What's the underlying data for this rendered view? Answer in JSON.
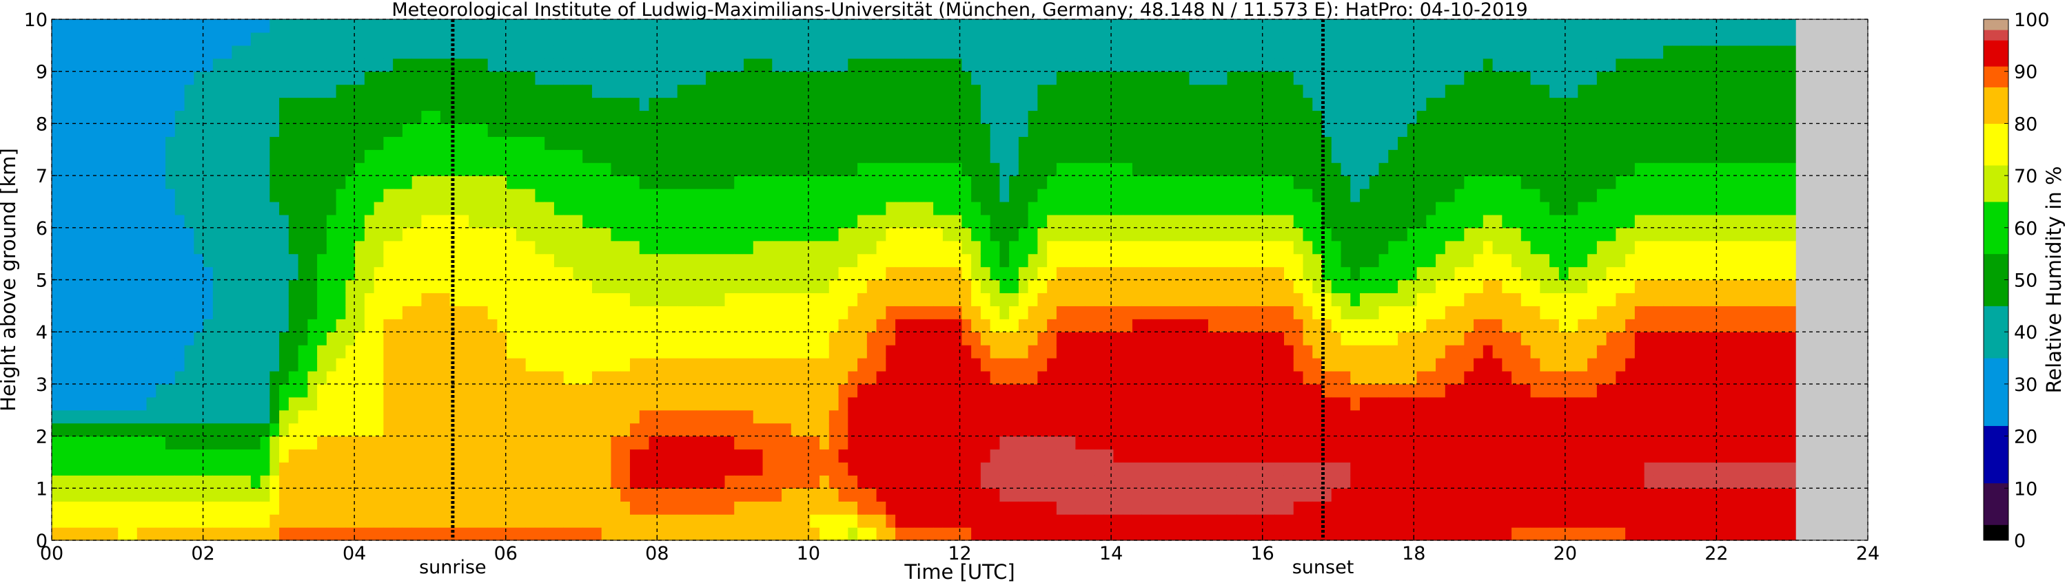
{
  "chart_data": {
    "type": "heatmap",
    "title": "Meteorological Institute of Ludwig-Maximilians-Universität (München, Germany; 48.148 N / 11.573 E):    HatPro: 04-10-2019",
    "xlabel": "Time [UTC]",
    "ylabel": "Height above ground [km]",
    "colorbar_label": "Relative Humidity in %",
    "xlim": [
      0,
      24
    ],
    "ylim": [
      0,
      10
    ],
    "x_ticks": [
      "00",
      "02",
      "04",
      "06",
      "08",
      "10",
      "12",
      "14",
      "16",
      "18",
      "20",
      "22",
      "24"
    ],
    "y_ticks": [
      "0",
      "1",
      "2",
      "3",
      "4",
      "5",
      "6",
      "7",
      "8",
      "9",
      "10"
    ],
    "colorbar_ticks": [
      "0",
      "10",
      "20",
      "30",
      "40",
      "50",
      "60",
      "70",
      "80",
      "90",
      "100"
    ],
    "grid": true,
    "data_end_hour": 23.05,
    "no_data_color": "#c8c8c8",
    "events": [
      {
        "label": "sunrise",
        "hour": 5.3
      },
      {
        "label": "sunset",
        "hour": 16.8
      }
    ],
    "colorscale": [
      {
        "from": 0,
        "to": 3,
        "color": "#000000"
      },
      {
        "from": 3,
        "to": 11,
        "color": "#3a0a4a"
      },
      {
        "from": 11,
        "to": 22,
        "color": "#0000aa"
      },
      {
        "from": 22,
        "to": 35,
        "color": "#0096e0"
      },
      {
        "from": 35,
        "to": 45,
        "color": "#00a8a0"
      },
      {
        "from": 45,
        "to": 55,
        "color": "#00a000"
      },
      {
        "from": 55,
        "to": 65,
        "color": "#00d800"
      },
      {
        "from": 65,
        "to": 72,
        "color": "#c8f000"
      },
      {
        "from": 72,
        "to": 80,
        "color": "#ffff00"
      },
      {
        "from": 80,
        "to": 87,
        "color": "#ffc000"
      },
      {
        "from": 87,
        "to": 91,
        "color": "#ff6000"
      },
      {
        "from": 91,
        "to": 96,
        "color": "#e00000"
      },
      {
        "from": 96,
        "to": 98,
        "color": "#d24646"
      },
      {
        "from": 98,
        "to": 100,
        "color": "#c8a080"
      }
    ],
    "profile_heights_km": [
      0,
      0.1,
      0.3,
      0.6,
      1.0,
      1.5,
      2.0,
      2.5,
      3.0,
      3.5,
      4.0,
      4.5,
      5.0,
      5.5,
      6.0,
      6.5,
      7.0,
      7.5,
      8.0,
      8.5,
      9.0,
      9.5,
      10.0
    ],
    "profiles": [
      {
        "hour": 0.0,
        "rh": [
          84,
          82,
          80,
          76,
          70,
          62,
          55,
          34,
          32,
          30,
          30,
          29,
          28,
          29,
          30,
          31,
          30,
          28,
          27,
          26,
          25,
          24,
          22
        ]
      },
      {
        "hour": 1.0,
        "rh": [
          82,
          80,
          78,
          74,
          68,
          60,
          54,
          35,
          34,
          32,
          31,
          30,
          30,
          31,
          31,
          32,
          32,
          31,
          30,
          29,
          28,
          26,
          24
        ]
      },
      {
        "hour": 2.0,
        "rh": [
          84,
          82,
          79,
          75,
          68,
          59,
          53,
          36,
          36,
          36,
          35,
          34,
          34,
          35,
          36,
          37,
          38,
          39,
          38,
          37,
          35,
          33,
          30
        ]
      },
      {
        "hour": 2.8,
        "rh": [
          86,
          84,
          80,
          75,
          67,
          58,
          52,
          36,
          37,
          37,
          38,
          38,
          39,
          40,
          41,
          42,
          43,
          42,
          41,
          40,
          38,
          36,
          34
        ]
      },
      {
        "hour": 3.1,
        "rh": [
          90,
          88,
          84,
          82,
          82,
          84,
          76,
          66,
          56,
          50,
          46,
          44,
          42,
          42,
          44,
          48,
          50,
          50,
          48,
          45,
          42,
          40,
          38
        ]
      },
      {
        "hour": 3.6,
        "rh": [
          92,
          88,
          85,
          83,
          82,
          82,
          80,
          76,
          72,
          68,
          62,
          58,
          57,
          56,
          55,
          52,
          50,
          48,
          47,
          45,
          43,
          41,
          40
        ]
      },
      {
        "hour": 4.4,
        "rh": [
          92,
          89,
          85,
          84,
          83,
          82,
          80,
          80,
          80,
          80,
          80,
          78,
          75,
          73,
          70,
          66,
          62,
          56,
          52,
          48,
          45,
          42,
          40
        ]
      },
      {
        "hour": 5.0,
        "rh": [
          93,
          90,
          86,
          84,
          84,
          82,
          82,
          81,
          84,
          85,
          88,
          82,
          78,
          76,
          74,
          70,
          66,
          62,
          57,
          52,
          48,
          44,
          42
        ]
      },
      {
        "hour": 6.0,
        "rh": [
          93,
          90,
          86,
          85,
          84,
          84,
          82,
          82,
          82,
          80,
          80,
          78,
          76,
          74,
          72,
          68,
          64,
          58,
          53,
          48,
          45,
          42,
          40
        ]
      },
      {
        "hour": 7.0,
        "rh": [
          91,
          88,
          84,
          82,
          82,
          83,
          82,
          80,
          80,
          78,
          76,
          74,
          72,
          70,
          66,
          62,
          58,
          54,
          50,
          46,
          43,
          41,
          40
        ]
      },
      {
        "hour": 7.8,
        "rh": [
          89,
          86,
          84,
          88,
          92,
          93,
          90,
          86,
          82,
          80,
          76,
          72,
          70,
          66,
          62,
          58,
          54,
          50,
          47,
          44,
          42,
          40,
          38
        ]
      },
      {
        "hour": 8.5,
        "rh": [
          88,
          86,
          84,
          88,
          91,
          93,
          92,
          86,
          82,
          80,
          76,
          72,
          68,
          64,
          60,
          56,
          52,
          50,
          48,
          46,
          44,
          42,
          40
        ]
      },
      {
        "hour": 9.3,
        "rh": [
          87,
          85,
          84,
          86,
          90,
          92,
          90,
          86,
          82,
          80,
          78,
          74,
          70,
          66,
          62,
          58,
          55,
          52,
          50,
          48,
          46,
          43,
          40
        ]
      },
      {
        "hour": 10.2,
        "rh": [
          82,
          80,
          78,
          82,
          86,
          88,
          86,
          84,
          82,
          80,
          78,
          74,
          70,
          66,
          62,
          58,
          54,
          52,
          50,
          48,
          45,
          42,
          40
        ]
      },
      {
        "hour": 10.6,
        "rh": [
          62,
          70,
          78,
          86,
          90,
          93,
          93,
          92,
          90,
          86,
          84,
          80,
          76,
          70,
          66,
          60,
          56,
          52,
          50,
          48,
          46,
          43,
          40
        ]
      },
      {
        "hour": 11.2,
        "rh": [
          86,
          88,
          91,
          93,
          94,
          94,
          94,
          94,
          94,
          93,
          92,
          88,
          84,
          78,
          72,
          64,
          58,
          54,
          52,
          50,
          47,
          44,
          41
        ]
      },
      {
        "hour": 12.0,
        "rh": [
          88,
          90,
          93,
          94,
          95,
          95,
          95,
          95,
          94,
          93,
          92,
          88,
          82,
          76,
          70,
          62,
          56,
          53,
          51,
          49,
          46,
          43,
          40
        ]
      },
      {
        "hour": 12.6,
        "rh": [
          89,
          92,
          94,
          95,
          97,
          97,
          96,
          94,
          90,
          86,
          78,
          68,
          58,
          52,
          48,
          45,
          43,
          42,
          41,
          40,
          39,
          38,
          37
        ]
      },
      {
        "hour": 13.3,
        "rh": [
          90,
          93,
          95,
          96,
          97,
          97,
          96,
          94,
          93,
          92,
          91,
          88,
          84,
          78,
          70,
          62,
          56,
          52,
          50,
          48,
          45,
          42,
          40
        ]
      },
      {
        "hour": 14.3,
        "rh": [
          90,
          93,
          95,
          96,
          96,
          96,
          95,
          94,
          93,
          92,
          92,
          88,
          82,
          76,
          70,
          62,
          56,
          52,
          50,
          48,
          45,
          42,
          40
        ]
      },
      {
        "hour": 15.3,
        "rh": [
          90,
          93,
          95,
          96,
          96,
          96,
          95,
          94,
          93,
          92,
          92,
          88,
          82,
          76,
          68,
          60,
          55,
          51,
          49,
          47,
          44,
          42,
          40
        ]
      },
      {
        "hour": 16.3,
        "rh": [
          90,
          93,
          95,
          96,
          97,
          96,
          95,
          94,
          93,
          92,
          91,
          88,
          82,
          76,
          70,
          62,
          56,
          52,
          50,
          48,
          45,
          42,
          40
        ]
      },
      {
        "hour": 17.2,
        "rh": [
          89,
          92,
          94,
          95,
          96,
          96,
          95,
          92,
          88,
          82,
          76,
          66,
          56,
          50,
          47,
          45,
          43,
          42,
          41,
          40,
          39,
          38,
          37
        ]
      },
      {
        "hour": 18.0,
        "rh": [
          88,
          91,
          93,
          94,
          95,
          95,
          94,
          92,
          88,
          84,
          80,
          74,
          66,
          60,
          54,
          50,
          48,
          46,
          45,
          44,
          42,
          40,
          38
        ]
      },
      {
        "hour": 19.0,
        "rh": [
          88,
          91,
          93,
          95,
          96,
          96,
          95,
          94,
          93,
          92,
          90,
          86,
          80,
          74,
          68,
          62,
          56,
          52,
          50,
          48,
          46,
          43,
          40
        ]
      },
      {
        "hour": 20.0,
        "rh": [
          87,
          90,
          92,
          94,
          95,
          95,
          94,
          92,
          88,
          84,
          80,
          74,
          66,
          60,
          56,
          52,
          50,
          48,
          46,
          45,
          43,
          41,
          39
        ]
      },
      {
        "hour": 21.0,
        "rh": [
          88,
          91,
          93,
          95,
          96,
          96,
          95,
          94,
          93,
          92,
          91,
          86,
          80,
          74,
          68,
          62,
          56,
          53,
          51,
          49,
          47,
          44,
          41
        ]
      },
      {
        "hour": 22.0,
        "rh": [
          89,
          91,
          93,
          95,
          96,
          96,
          95,
          94,
          93,
          92,
          91,
          86,
          80,
          74,
          68,
          62,
          57,
          54,
          52,
          50,
          48,
          45,
          42
        ]
      },
      {
        "hour": 23.0,
        "rh": [
          89,
          91,
          93,
          95,
          96,
          96,
          95,
          94,
          93,
          92,
          91,
          86,
          80,
          74,
          68,
          62,
          57,
          54,
          52,
          50,
          48,
          45,
          42
        ]
      }
    ]
  }
}
